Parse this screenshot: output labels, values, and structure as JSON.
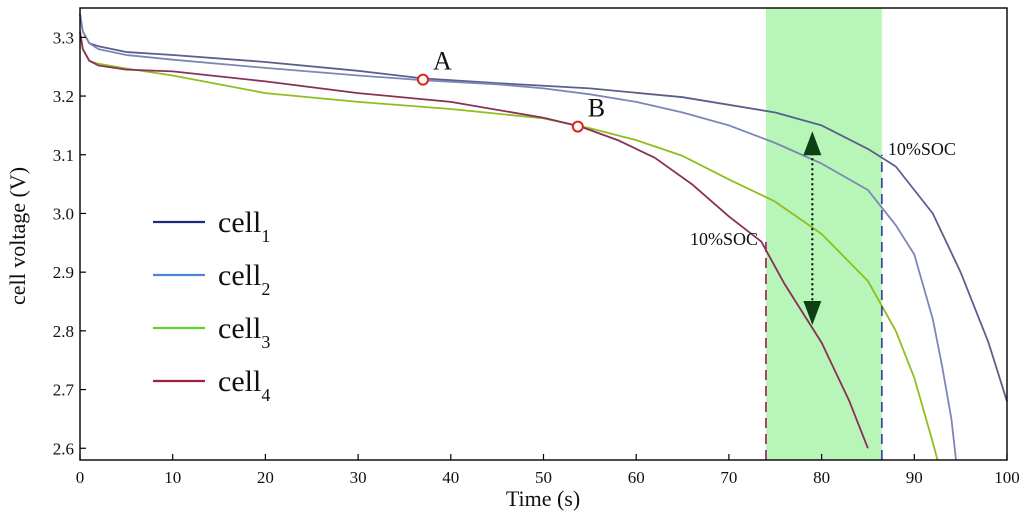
{
  "colors": {
    "cell1": "#5a5f8c",
    "cell2": "#7d86b5",
    "cell3": "#8fbf1e",
    "cell4": "#8a2f5a",
    "band": "#b8f5b8",
    "line_legend_cell1": "#1f2a7a",
    "line_legend_cell2": "#4d84d8",
    "line_legend_cell3": "#5fd12f",
    "line_legend_cell4": "#a02040",
    "marker": "#e02020",
    "arrow": "#0f3f14",
    "dash_cell4": "#a0306a",
    "dash_cell1": "#3a4fa0"
  },
  "chart_data": {
    "type": "line",
    "title": "",
    "xlabel": "Time (s)",
    "ylabel": "cell voltage (V)",
    "xlim": [
      0,
      100
    ],
    "ylim": [
      2.58,
      3.35
    ],
    "xticks": [
      0,
      10,
      20,
      30,
      40,
      50,
      60,
      70,
      80,
      90,
      100
    ],
    "yticks": [
      2.6,
      2.7,
      2.8,
      2.9,
      3.0,
      3.1,
      3.2,
      3.3
    ],
    "ytick_labels": [
      "2.6",
      "2.7",
      "2.8",
      "2.9",
      "3.0",
      "3.1",
      "3.2",
      "3.3"
    ],
    "legend": {
      "position": "left",
      "entries": [
        {
          "base": "cell",
          "sub": "1"
        },
        {
          "base": "cell",
          "sub": "2"
        },
        {
          "base": "cell",
          "sub": "3"
        },
        {
          "base": "cell",
          "sub": "4"
        }
      ]
    },
    "series": [
      {
        "name": "cell1",
        "x": [
          0,
          0.3,
          1,
          2,
          5,
          10,
          20,
          30,
          37,
          45,
          55,
          65,
          75,
          80,
          85,
          88,
          92,
          95,
          98,
          100
        ],
        "y": [
          3.34,
          3.31,
          3.29,
          3.285,
          3.275,
          3.27,
          3.258,
          3.243,
          3.23,
          3.222,
          3.213,
          3.198,
          3.172,
          3.15,
          3.11,
          3.08,
          3.0,
          2.9,
          2.78,
          2.68
        ]
      },
      {
        "name": "cell2",
        "x": [
          0,
          0.3,
          1,
          2,
          5,
          10,
          20,
          30,
          37,
          45,
          50,
          55,
          60,
          65,
          70,
          75,
          80,
          85,
          88,
          90,
          92,
          93,
          94,
          94.5
        ],
        "y": [
          3.34,
          3.31,
          3.29,
          3.28,
          3.27,
          3.262,
          3.248,
          3.235,
          3.227,
          3.22,
          3.213,
          3.203,
          3.19,
          3.172,
          3.15,
          3.12,
          3.085,
          3.04,
          2.98,
          2.93,
          2.82,
          2.74,
          2.65,
          2.58
        ]
      },
      {
        "name": "cell3",
        "x": [
          0,
          0.3,
          1,
          2,
          5,
          10,
          20,
          30,
          40,
          50,
          55,
          60,
          65,
          70,
          75,
          80,
          85,
          88,
          90,
          92,
          92.5
        ],
        "y": [
          3.31,
          3.28,
          3.26,
          3.255,
          3.247,
          3.235,
          3.205,
          3.19,
          3.178,
          3.162,
          3.145,
          3.125,
          3.098,
          3.058,
          3.02,
          2.965,
          2.885,
          2.8,
          2.72,
          2.61,
          2.58
        ]
      },
      {
        "name": "cell4",
        "x": [
          0,
          0.3,
          1,
          2,
          5,
          10,
          20,
          30,
          40,
          50,
          54,
          58,
          62,
          66,
          70,
          73.5,
          76,
          80,
          83,
          85
        ],
        "y": [
          3.31,
          3.28,
          3.26,
          3.252,
          3.245,
          3.242,
          3.225,
          3.205,
          3.19,
          3.163,
          3.148,
          3.125,
          3.095,
          3.05,
          2.995,
          2.952,
          2.88,
          2.78,
          2.68,
          2.6
        ]
      }
    ],
    "highlight_band": {
      "x_from": 74,
      "x_to": 86.5
    },
    "vlines": [
      {
        "name": "cell4-10soc",
        "x": 74,
        "y_from": 2.58,
        "y_to": 2.955,
        "label": "10%SOC"
      },
      {
        "name": "cell1-10soc",
        "x": 86.5,
        "y_from": 2.58,
        "y_to": 3.1,
        "label": "10%SOC"
      }
    ],
    "points": [
      {
        "label": "A",
        "x": 37,
        "y": 3.228
      },
      {
        "label": "B",
        "x": 53.7,
        "y": 3.148
      }
    ],
    "arrow": {
      "x": 79,
      "y_top": 3.14,
      "y_bottom": 2.81
    }
  }
}
